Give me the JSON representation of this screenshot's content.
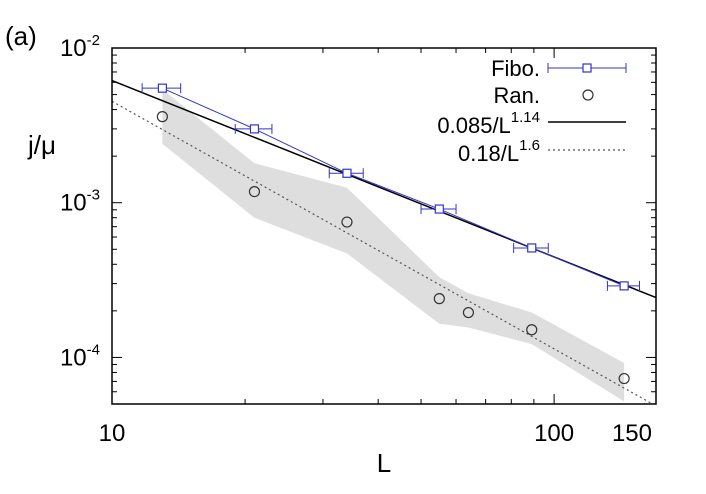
{
  "panel_label": "(a)",
  "chart_data": {
    "type": "scatter",
    "xlabel": "L",
    "ylabel": "j/μ",
    "xscale": "log",
    "yscale": "log",
    "xlim": [
      10,
      170
    ],
    "ylim": [
      5e-05,
      0.01
    ],
    "x_ticks": [
      {
        "value": 10,
        "label": "10"
      },
      {
        "value": 100,
        "label": "100"
      },
      {
        "value": 150,
        "label": "150"
      }
    ],
    "y_ticks": [
      {
        "value": 0.01,
        "base": "10",
        "exp": "-2"
      },
      {
        "value": 0.001,
        "base": "10",
        "exp": "-3"
      },
      {
        "value": 0.0001,
        "base": "10",
        "exp": "-4"
      }
    ],
    "legend_position": "top-right",
    "series": [
      {
        "name": "Fibo.",
        "kind": "errorbar-square",
        "color": "#3333cc",
        "x": [
          13,
          21,
          34,
          55,
          89,
          144
        ],
        "y": [
          0.0055,
          0.003,
          0.00155,
          0.00091,
          0.00051,
          0.00029
        ],
        "xerr": [
          1.3,
          2.0,
          3.0,
          5.0,
          8.0,
          12.0
        ]
      },
      {
        "name": "Ran.",
        "kind": "circle",
        "color": "#333333",
        "x": [
          13,
          21,
          34,
          55,
          64,
          89,
          144
        ],
        "y": [
          0.0036,
          0.00118,
          0.00075,
          0.00024,
          0.000195,
          0.000151,
          7.3e-05
        ],
        "band_lower": [
          0.0024,
          0.0008,
          0.00047,
          0.000165,
          0.000156,
          0.000122,
          5.2e-05
        ],
        "band_upper": [
          0.0054,
          0.0018,
          0.00125,
          0.00033,
          0.00026,
          0.000195,
          9.2e-05
        ]
      },
      {
        "name_prefix": "0.085/L",
        "name_exp": "1.14",
        "kind": "power-law",
        "color": "#000000",
        "dash": "solid",
        "coef": 0.085,
        "exponent": 1.14
      },
      {
        "name_prefix": "0.18/L",
        "name_exp": "1.6",
        "kind": "power-law",
        "color": "#555555",
        "dash": "dotted",
        "coef": 0.18,
        "exponent": 1.6
      }
    ]
  }
}
